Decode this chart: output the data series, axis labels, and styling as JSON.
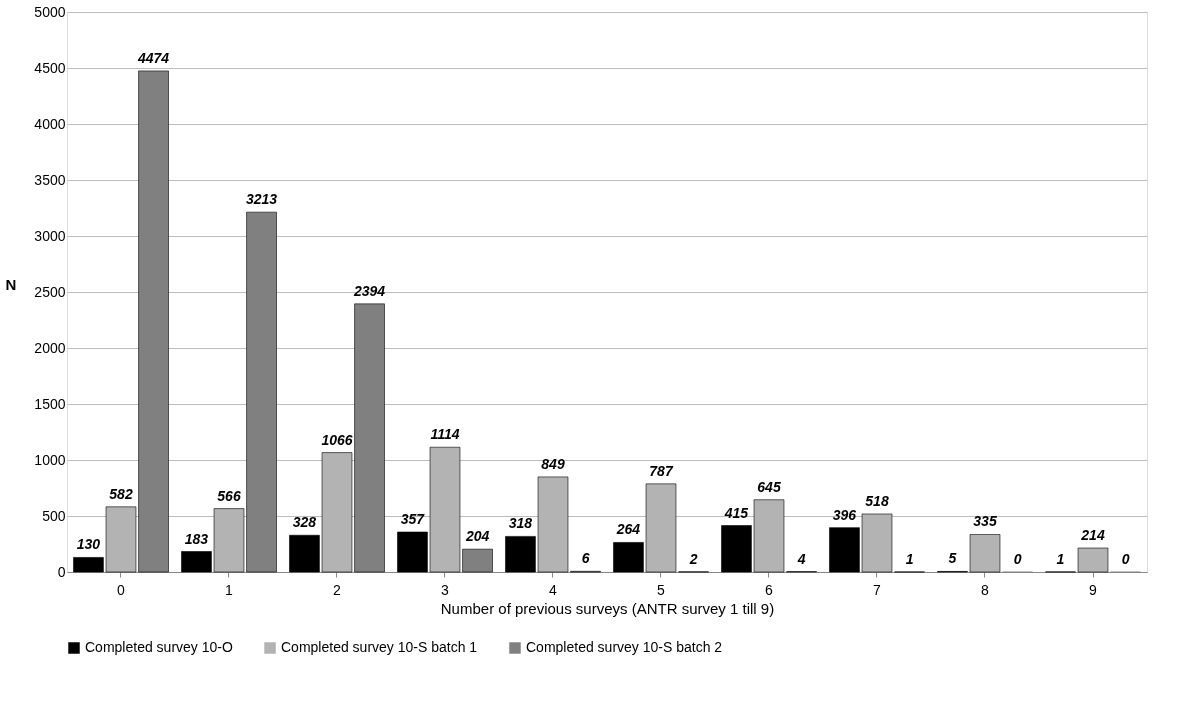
{
  "chart_data": {
    "type": "bar",
    "xlabel": "Number of previous surveys (ANTR survey 1 till 9)",
    "ylabel": "N",
    "categories": [
      "0",
      "1",
      "2",
      "3",
      "4",
      "5",
      "6",
      "7",
      "8",
      "9"
    ],
    "series": [
      {
        "name": "Completed survey 10-O",
        "color": "#000000",
        "values": [
          130,
          183,
          328,
          357,
          318,
          264,
          415,
          396,
          5,
          1
        ]
      },
      {
        "name": "Completed survey 10-S batch 1",
        "color": "#b3b3b3",
        "values": [
          582,
          566,
          1066,
          1114,
          849,
          787,
          645,
          518,
          335,
          214
        ]
      },
      {
        "name": "Completed survey 10-S batch 2",
        "color": "#808080",
        "values": [
          4474,
          3213,
          2394,
          204,
          6,
          2,
          4,
          1,
          0,
          0
        ]
      }
    ],
    "ylim": [
      0,
      5000
    ],
    "yticks": [
      0,
      500,
      1000,
      1500,
      2000,
      2500,
      3000,
      3500,
      4000,
      4500,
      5000
    ],
    "grid": "y",
    "legend": "bottom",
    "data_labels": true
  }
}
